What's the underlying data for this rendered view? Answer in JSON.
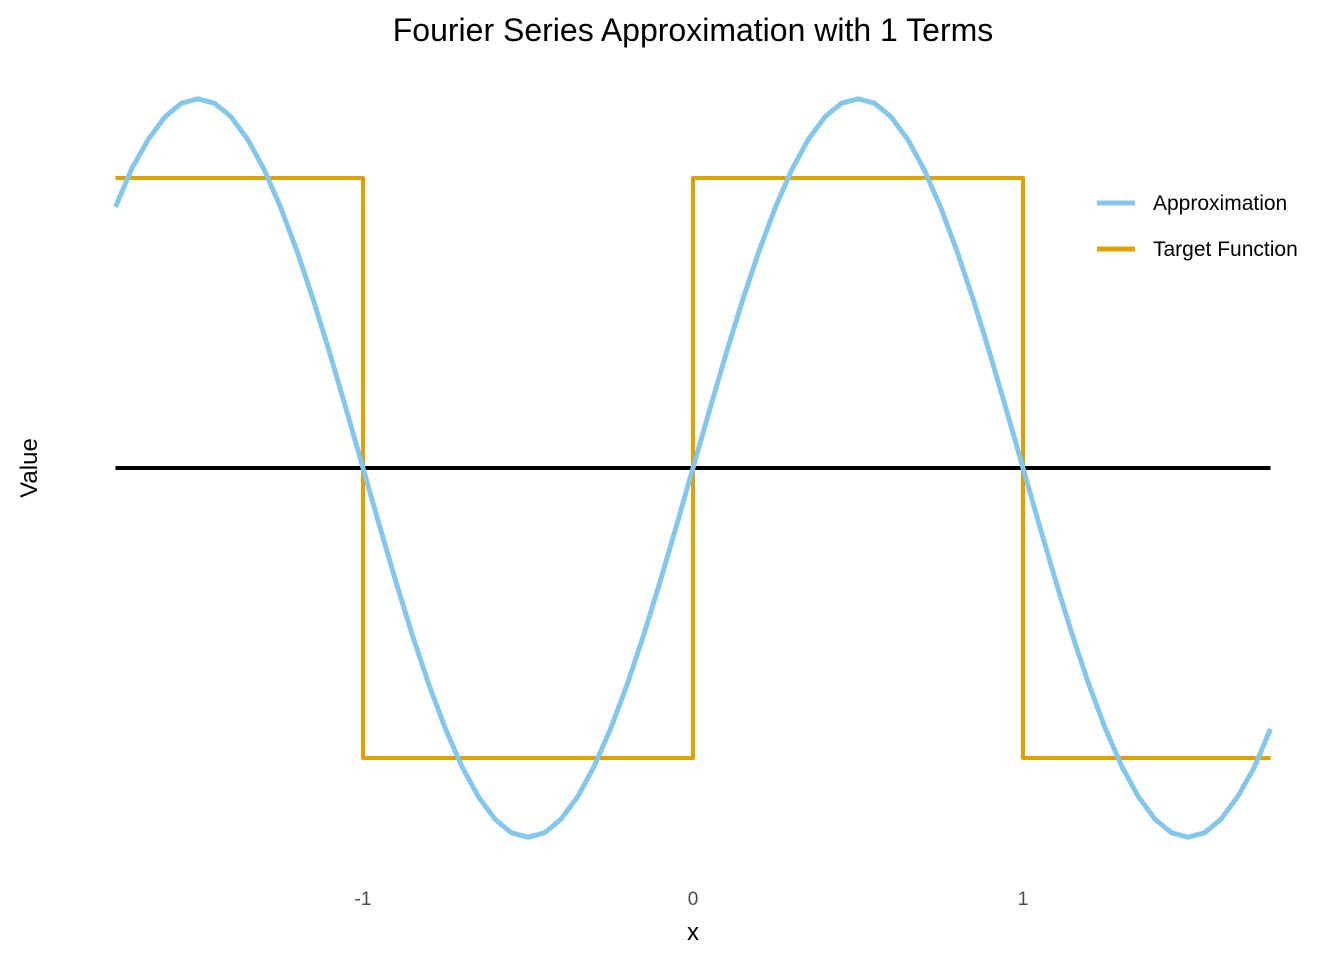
{
  "chart_data": {
    "type": "line",
    "title": "Fourier Series Approximation with 1 Terms",
    "xlabel": "x",
    "ylabel": "Value",
    "xlim": [
      -1.75,
      1.75
    ],
    "ylim": [
      -1.3,
      1.3
    ],
    "x_ticks": [
      -1,
      0,
      1
    ],
    "x_tick_labels": [
      "-1",
      "0",
      "1"
    ],
    "grid": false,
    "legend_position": "top-right",
    "zero_line": {
      "y": 0,
      "color": "#000000"
    },
    "series": [
      {
        "name": "Approximation",
        "color": "#85C7EA",
        "terms": 1,
        "amplitude": 1.2732,
        "x": [
          -1.75,
          -1.7,
          -1.65,
          -1.6,
          -1.55,
          -1.5,
          -1.45,
          -1.4,
          -1.35,
          -1.3,
          -1.25,
          -1.2,
          -1.15,
          -1.1,
          -1.05,
          -1.0,
          -0.95,
          -0.9,
          -0.85,
          -0.8,
          -0.75,
          -0.7,
          -0.65,
          -0.6,
          -0.55,
          -0.5,
          -0.45,
          -0.4,
          -0.35,
          -0.3,
          -0.25,
          -0.2,
          -0.15,
          -0.1,
          -0.05,
          0.0,
          0.05,
          0.1,
          0.15,
          0.2,
          0.25,
          0.3,
          0.35,
          0.4,
          0.45,
          0.5,
          0.55,
          0.6,
          0.65,
          0.7,
          0.75,
          0.8,
          0.85,
          0.9,
          0.95,
          1.0,
          1.05,
          1.1,
          1.15,
          1.2,
          1.25,
          1.3,
          1.35,
          1.4,
          1.45,
          1.5,
          1.55,
          1.6,
          1.65,
          1.7,
          1.75
        ],
        "values": [
          0.9,
          1.034,
          1.134,
          1.211,
          1.258,
          1.273,
          1.258,
          1.211,
          1.134,
          1.03,
          0.9,
          0.748,
          0.578,
          0.393,
          0.199,
          0.0,
          -0.199,
          -0.393,
          -0.578,
          -0.748,
          -0.9,
          -1.03,
          -1.134,
          -1.211,
          -1.258,
          -1.273,
          -1.258,
          -1.211,
          -1.134,
          -1.03,
          -0.9,
          -0.748,
          -0.578,
          -0.393,
          -0.199,
          0.0,
          0.199,
          0.393,
          0.578,
          0.748,
          0.9,
          1.03,
          1.134,
          1.211,
          1.258,
          1.273,
          1.258,
          1.211,
          1.134,
          1.03,
          0.9,
          0.748,
          0.578,
          0.393,
          0.199,
          0.0,
          -0.199,
          -0.393,
          -0.578,
          -0.748,
          -0.9,
          -1.03,
          -1.134,
          -1.211,
          -1.258,
          -1.273,
          -1.258,
          -1.211,
          -1.134,
          -1.034,
          -0.9
        ]
      },
      {
        "name": "Target Function",
        "color": "#E0A000",
        "x": [
          -1.75,
          -1.0,
          -1.0,
          0.0,
          0.0,
          1.0,
          1.0,
          1.75
        ],
        "values": [
          1,
          1,
          -1,
          -1,
          1,
          1,
          -1,
          -1
        ]
      }
    ]
  }
}
